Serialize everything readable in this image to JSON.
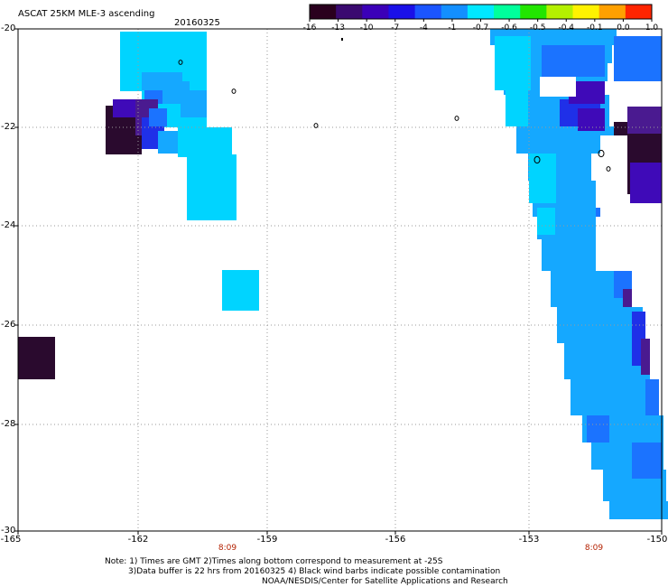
{
  "header": {
    "title": "ASCAT 25KM MLE-3 ascending",
    "date": "20160325"
  },
  "colorbar": {
    "labels": [
      "-16",
      "-13",
      "-10",
      "-7",
      "-4",
      "-1",
      "-0.7",
      "-0.6",
      "-0.5",
      "-0.4",
      "-0.1",
      "0.0",
      "1.0"
    ],
    "colors": [
      "#2a001e",
      "#3a0a70",
      "#3b00b8",
      "#1a10e8",
      "#1b55ff",
      "#138fff",
      "#00e8ff",
      "#00ff9c",
      "#22e600",
      "#b4f000",
      "#fff200",
      "#ffa000",
      "#ff2500"
    ]
  },
  "axes": {
    "y_labels": [
      "-20",
      "-22",
      "-24",
      "-26",
      "-28",
      "-30"
    ],
    "x_labels": [
      "-165",
      "-162",
      "-159",
      "-156",
      "-153",
      "-150"
    ]
  },
  "times": [
    "8:09",
    "8:09"
  ],
  "notes": {
    "line1": "Note: 1) Times are GMT 2)Times along bottom correspond to measurement at -25S",
    "line2": "3)Data buffer is 22 hrs from 20160325 4) Black wind barbs indicate possible contamination",
    "line3": "NOAA/NESDIS/Center for Satellite Applications and Research"
  },
  "map": {
    "lat_range": [
      -30,
      -20
    ],
    "lon_range": [
      -165,
      -150
    ],
    "palette": {
      "cyan": "#00d4ff",
      "lightblue": "#15a8ff",
      "blue": "#1b73ff",
      "deepblue": "#1f30e8",
      "indigo": "#3f0ab8",
      "purple": "#4a1a90",
      "darkpurple": "#2a0a2e"
    }
  }
}
